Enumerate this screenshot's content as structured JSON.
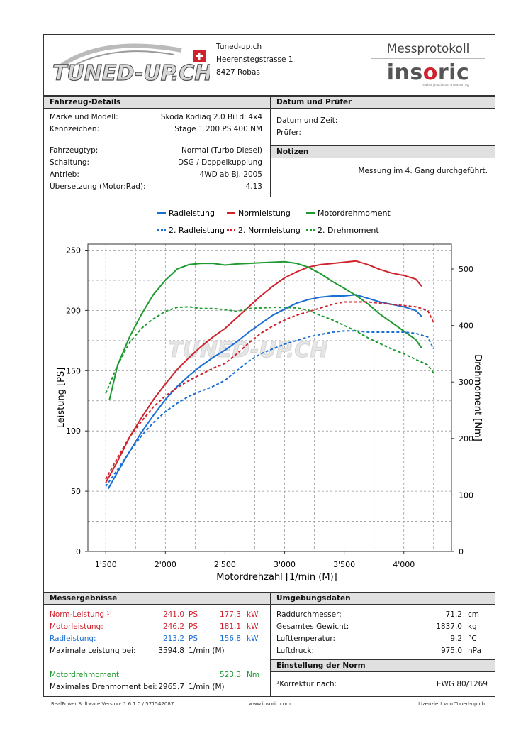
{
  "company": {
    "logo_text": "TUNED-UP.CH",
    "name": "Tuned-up.ch",
    "street": "Heerenstegstrasse 1",
    "city": "8427 Robas"
  },
  "protocol": {
    "title": "Messprotokoll",
    "brand": "insoric",
    "brand_sub": "swiss precision measuring"
  },
  "vehicle": {
    "header": "Fahrzeug-Details",
    "rows": [
      {
        "label": "Marke und Modell:",
        "value": "Skoda Kodiaq 2.0 BiTdi 4x4"
      },
      {
        "label": "Kennzeichen:",
        "value": "Stage 1 200 PS 400 NM"
      },
      {
        "label": "Fahrzeugtyp:",
        "value": "Normal (Turbo Diesel)"
      },
      {
        "label": "Schaltung:",
        "value": "DSG / Doppelkupplung"
      },
      {
        "label": "Antrieb:",
        "value": "4WD ab Bj. 2005"
      },
      {
        "label": "Übersetzung (Motor:Rad):",
        "value": "4.13"
      }
    ]
  },
  "date_tester": {
    "header": "Datum und Prüfer",
    "date_label": "Datum und Zeit:",
    "tester_label": "Prüfer:"
  },
  "notes": {
    "header": "Notizen",
    "text": "Messung im 4. Gang durchgeführt."
  },
  "chart_data": {
    "type": "line",
    "xlabel": "Motordrehzahl [1/min (M)]",
    "ylabel": "Leistung [PS]",
    "y2label": "Drehmoment [Nm]",
    "xlim": [
      1350,
      4400
    ],
    "ylim": [
      0,
      255
    ],
    "y2lim": [
      0,
      544
    ],
    "x_ticks": [
      1500,
      2000,
      2500,
      3000,
      3500,
      4000
    ],
    "x_tick_labels": [
      "1'500",
      "2'000",
      "2'500",
      "3'000",
      "3'500",
      "4'000"
    ],
    "y_ticks": [
      0,
      50,
      100,
      150,
      200,
      250
    ],
    "y2_ticks": [
      0,
      100,
      200,
      300,
      400,
      500
    ],
    "grid": true,
    "legend_position": "top",
    "series": [
      {
        "name": "Radleistung",
        "axis": "left",
        "color": "#1a6fd6",
        "dashed": false,
        "x": [
          1520,
          1600,
          1700,
          1800,
          1900,
          2000,
          2100,
          2200,
          2300,
          2400,
          2500,
          2600,
          2700,
          2800,
          2900,
          3000,
          3100,
          3200,
          3300,
          3400,
          3500,
          3600,
          3700,
          3800,
          3900,
          4000,
          4100,
          4150
        ],
        "y": [
          52,
          66,
          83,
          99,
          113,
          126,
          137,
          146,
          154,
          161,
          167,
          174,
          182,
          189,
          196,
          201,
          206,
          209,
          211,
          212,
          212,
          213,
          210,
          207,
          205,
          203,
          200,
          195
        ]
      },
      {
        "name": "Normleistung",
        "axis": "left",
        "color": "#d0222c",
        "dashed": false,
        "x": [
          1500,
          1600,
          1700,
          1800,
          1900,
          2000,
          2100,
          2200,
          2300,
          2400,
          2500,
          2600,
          2700,
          2800,
          2900,
          3000,
          3100,
          3200,
          3300,
          3400,
          3500,
          3600,
          3700,
          3800,
          3900,
          4000,
          4100,
          4150
        ],
        "y": [
          57,
          75,
          95,
          111,
          126,
          139,
          151,
          161,
          170,
          178,
          185,
          194,
          203,
          212,
          220,
          227,
          232,
          236,
          238,
          239,
          240,
          241,
          238,
          234,
          231,
          229,
          226,
          220
        ]
      },
      {
        "name": "Motordrehmoment",
        "axis": "right",
        "color": "#1e9a30",
        "dashed": false,
        "x": [
          1530,
          1600,
          1700,
          1800,
          1900,
          2000,
          2100,
          2200,
          2300,
          2400,
          2500,
          2600,
          2700,
          2800,
          2900,
          3000,
          3100,
          3200,
          3300,
          3400,
          3500,
          3600,
          3700,
          3800,
          3900,
          4000,
          4100,
          4150
        ],
        "y": [
          268,
          330,
          380,
          420,
          455,
          480,
          500,
          508,
          510,
          510,
          507,
          509,
          510,
          511,
          512,
          513,
          510,
          503,
          492,
          478,
          466,
          453,
          438,
          420,
          405,
          390,
          375,
          360
        ]
      },
      {
        "name": "2. Radleistung",
        "axis": "left",
        "color": "#1a6fd6",
        "dashed": true,
        "x": [
          1500,
          1600,
          1700,
          1800,
          1900,
          2000,
          2100,
          2200,
          2300,
          2400,
          2500,
          2600,
          2700,
          2800,
          2900,
          3000,
          3100,
          3200,
          3300,
          3400,
          3500,
          3600,
          3700,
          3800,
          3900,
          4000,
          4100,
          4200,
          4250
        ],
        "y": [
          54,
          68,
          83,
          96,
          107,
          116,
          123,
          129,
          133,
          137,
          142,
          150,
          158,
          164,
          168,
          172,
          175,
          178,
          180,
          182,
          183,
          183,
          182,
          182,
          182,
          182,
          181,
          178,
          168
        ]
      },
      {
        "name": "2. Normleistung",
        "axis": "left",
        "color": "#d0222c",
        "dashed": true,
        "x": [
          1500,
          1600,
          1700,
          1800,
          1900,
          2000,
          2100,
          2200,
          2300,
          2400,
          2500,
          2600,
          2700,
          2800,
          2900,
          3000,
          3100,
          3200,
          3300,
          3400,
          3500,
          3600,
          3700,
          3800,
          3900,
          4000,
          4100,
          4200,
          4250
        ],
        "y": [
          60,
          78,
          95,
          108,
          120,
          129,
          136,
          142,
          147,
          152,
          156,
          164,
          173,
          181,
          187,
          192,
          196,
          199,
          202,
          205,
          207,
          207,
          207,
          206,
          205,
          204,
          203,
          200,
          190
        ]
      },
      {
        "name": "2. Drehmoment",
        "axis": "right",
        "color": "#1e9a30",
        "dashed": true,
        "x": [
          1500,
          1600,
          1700,
          1800,
          1900,
          2000,
          2100,
          2200,
          2300,
          2400,
          2500,
          2600,
          2700,
          2800,
          2900,
          3000,
          3100,
          3200,
          3300,
          3400,
          3500,
          3600,
          3700,
          3800,
          3900,
          4000,
          4100,
          4200,
          4250
        ],
        "y": [
          280,
          330,
          370,
          395,
          412,
          425,
          432,
          433,
          430,
          430,
          428,
          425,
          430,
          431,
          432,
          432,
          431,
          427,
          418,
          410,
          400,
          390,
          378,
          368,
          358,
          350,
          340,
          330,
          316
        ]
      }
    ]
  },
  "results": {
    "header": "Messergebnisse",
    "rows": [
      {
        "label": "Norm-Leistung ¹:",
        "v1": "241.0",
        "u1": "PS",
        "v2": "177.3",
        "u2": "kW",
        "color": "red"
      },
      {
        "label": "Motorleistung:",
        "v1": "246.2",
        "u1": "PS",
        "v2": "181.1",
        "u2": "kW",
        "color": "red"
      },
      {
        "label": "Radleistung:",
        "v1": "213.2",
        "u1": "PS",
        "v2": "156.8",
        "u2": "kW",
        "color": "blue"
      }
    ],
    "max_power_label": "Maximale Leistung bei:",
    "max_power_value": "3594.8",
    "max_power_unit": "1/min (M)",
    "torque_label": "Motordrehmoment",
    "torque_value": "523.3",
    "torque_unit": "Nm",
    "max_torque_label": "Maximales Drehmoment bei:",
    "max_torque_value": "2965.7",
    "max_torque_unit": "1/min (M)"
  },
  "environment": {
    "header": "Umgebungsdaten",
    "rows": [
      {
        "label": "Raddurchmesser:",
        "value": "71.2",
        "unit": "cm"
      },
      {
        "label": "Gesamtes Gewicht:",
        "value": "1837.0",
        "unit": "kg"
      },
      {
        "label": "Lufttemperatur:",
        "value": "9.2",
        "unit": "°C"
      },
      {
        "label": "Luftdruck:",
        "value": "975.0",
        "unit": "hPa"
      }
    ]
  },
  "norm": {
    "header": "Einstellung der Norm",
    "label": "¹Korrektur nach:",
    "value": "EWG 80/1269"
  },
  "footer": {
    "version": "RealPower Software Version: 1.6.1.0 / 571542087",
    "website": "www.insoric.com",
    "license": "Lizenziert von Tuned-up.ch"
  }
}
